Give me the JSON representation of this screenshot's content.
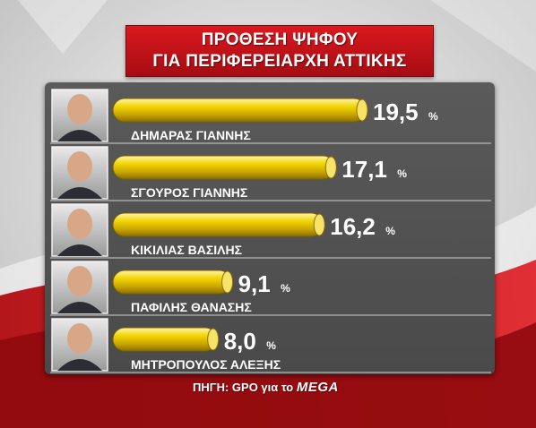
{
  "title": {
    "line1": "ΠΡΟΘΕΣΗ ΨΗΦΟΥ",
    "line2": "ΓΙΑ ΠΕΡΙΦΕΡΕΙΑΡΧΗ ΑΤΤΙΚΗΣ"
  },
  "source": {
    "prefix": "ΠΗΓΗ: GPO για το",
    "brand": "MEGA"
  },
  "colors": {
    "title_red": "#c8141a",
    "bar_yellow": "#e8c400",
    "panel_gray": "#555555",
    "text_white": "#ffffff"
  },
  "chart_data": {
    "type": "bar",
    "orientation": "horizontal",
    "title": "ΠΡΟΘΕΣΗ ΨΗΦΟΥ ΓΙΑ ΠΕΡΙΦΕΡΕΙΑΡΧΗ ΑΤΤΙΚΗΣ",
    "unit": "%",
    "categories": [
      "ΔΗΜΑΡΑΣ ΓΙΑΝΝΗΣ",
      "ΣΓΟΥΡΟΣ ΓΙΑΝΝΗΣ",
      "ΚΙΚΙΛΙΑΣ ΒΑΣΙΛΗΣ",
      "ΠΑΦΙΛΗΣ ΘΑΝΑΣΗΣ",
      "ΜΗΤΡΟΠΟΥΛΟΣ ΑΛΕΞΗΣ"
    ],
    "values": [
      19.5,
      17.1,
      16.2,
      9.1,
      8.0
    ],
    "value_labels": [
      "19,5",
      "17,1",
      "16,2",
      "9,1",
      "8,0"
    ],
    "grid": false,
    "legend": "none"
  }
}
